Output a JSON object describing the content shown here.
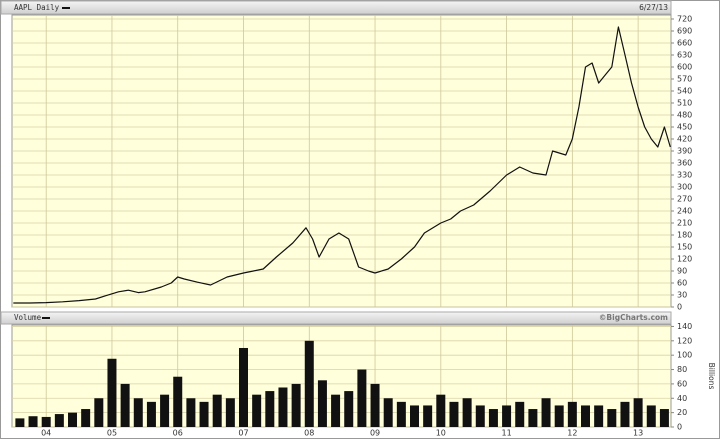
{
  "chart_data": [
    {
      "type": "line",
      "title": "AAPL Daily",
      "date": "6/27/13",
      "color": "#111111",
      "x": [
        2003.5,
        2003.75,
        2004.0,
        2004.25,
        2004.5,
        2004.75,
        2004.9,
        2005.0,
        2005.1,
        2005.25,
        2005.4,
        2005.5,
        2005.75,
        2005.9,
        2006.0,
        2006.1,
        2006.3,
        2006.5,
        2006.75,
        2007.0,
        2007.15,
        2007.3,
        2007.5,
        2007.75,
        2007.95,
        2008.05,
        2008.15,
        2008.3,
        2008.45,
        2008.6,
        2008.75,
        2008.9,
        2009.0,
        2009.2,
        2009.4,
        2009.6,
        2009.75,
        2010.0,
        2010.15,
        2010.3,
        2010.5,
        2010.75,
        2011.0,
        2011.2,
        2011.4,
        2011.6,
        2011.7,
        2011.9,
        2012.0,
        2012.1,
        2012.2,
        2012.3,
        2012.4,
        2012.5,
        2012.6,
        2012.7,
        2012.8,
        2012.9,
        2013.0,
        2013.1,
        2013.2,
        2013.3,
        2013.4,
        2013.49
      ],
      "values": [
        10,
        10,
        11,
        13,
        16,
        20,
        28,
        33,
        38,
        42,
        36,
        38,
        50,
        60,
        75,
        70,
        62,
        55,
        75,
        85,
        90,
        95,
        125,
        160,
        198,
        170,
        125,
        170,
        185,
        170,
        100,
        90,
        85,
        95,
        120,
        150,
        185,
        210,
        220,
        240,
        255,
        290,
        330,
        350,
        335,
        330,
        390,
        380,
        420,
        500,
        600,
        610,
        560,
        580,
        600,
        700,
        630,
        560,
        500,
        450,
        420,
        400,
        450,
        400
      ],
      "xlim": [
        2003.48,
        2013.5
      ],
      "xticks": [
        2004,
        2005,
        2006,
        2007,
        2008,
        2009,
        2010,
        2011,
        2012,
        2013
      ],
      "ylim": [
        0,
        730
      ],
      "yticks": [
        0,
        30,
        60,
        90,
        120,
        150,
        180,
        210,
        240,
        270,
        300,
        330,
        360,
        390,
        420,
        450,
        480,
        510,
        540,
        570,
        600,
        630,
        660,
        690,
        720
      ],
      "grid": true
    },
    {
      "type": "bar",
      "title": "Volume",
      "source": "©BigCharts.com",
      "ylabel": "Billions",
      "color": "#111111",
      "x": [
        2003.6,
        2003.8,
        2004.0,
        2004.2,
        2004.4,
        2004.6,
        2004.8,
        2005.0,
        2005.2,
        2005.4,
        2005.6,
        2005.8,
        2006.0,
        2006.2,
        2006.4,
        2006.6,
        2006.8,
        2007.0,
        2007.2,
        2007.4,
        2007.6,
        2007.8,
        2008.0,
        2008.2,
        2008.4,
        2008.6,
        2008.8,
        2009.0,
        2009.2,
        2009.4,
        2009.6,
        2009.8,
        2010.0,
        2010.2,
        2010.4,
        2010.6,
        2010.8,
        2011.0,
        2011.2,
        2011.4,
        2011.6,
        2011.8,
        2012.0,
        2012.2,
        2012.4,
        2012.6,
        2012.8,
        2013.0,
        2013.2,
        2013.4
      ],
      "values": [
        12,
        15,
        14,
        18,
        20,
        25,
        40,
        95,
        60,
        40,
        35,
        45,
        70,
        40,
        35,
        45,
        40,
        110,
        45,
        50,
        55,
        60,
        120,
        65,
        45,
        50,
        80,
        60,
        40,
        35,
        30,
        30,
        45,
        35,
        40,
        30,
        25,
        30,
        35,
        25,
        40,
        30,
        35,
        30,
        30,
        25,
        35,
        40,
        30,
        25
      ],
      "xlim": [
        2003.48,
        2013.5
      ],
      "xticks": [
        {
          "value": 2004,
          "label": "04"
        },
        {
          "value": 2005,
          "label": "05"
        },
        {
          "value": 2006,
          "label": "06"
        },
        {
          "value": 2007,
          "label": "07"
        },
        {
          "value": 2008,
          "label": "08"
        },
        {
          "value": 2009,
          "label": "09"
        },
        {
          "value": 2010,
          "label": "10"
        },
        {
          "value": 2011,
          "label": "11"
        },
        {
          "value": 2012,
          "label": "12"
        },
        {
          "value": 2013,
          "label": "13"
        }
      ],
      "ylim": [
        0,
        142
      ],
      "yticks": [
        0,
        20,
        40,
        60,
        80,
        100,
        120,
        140
      ],
      "grid": true
    }
  ]
}
